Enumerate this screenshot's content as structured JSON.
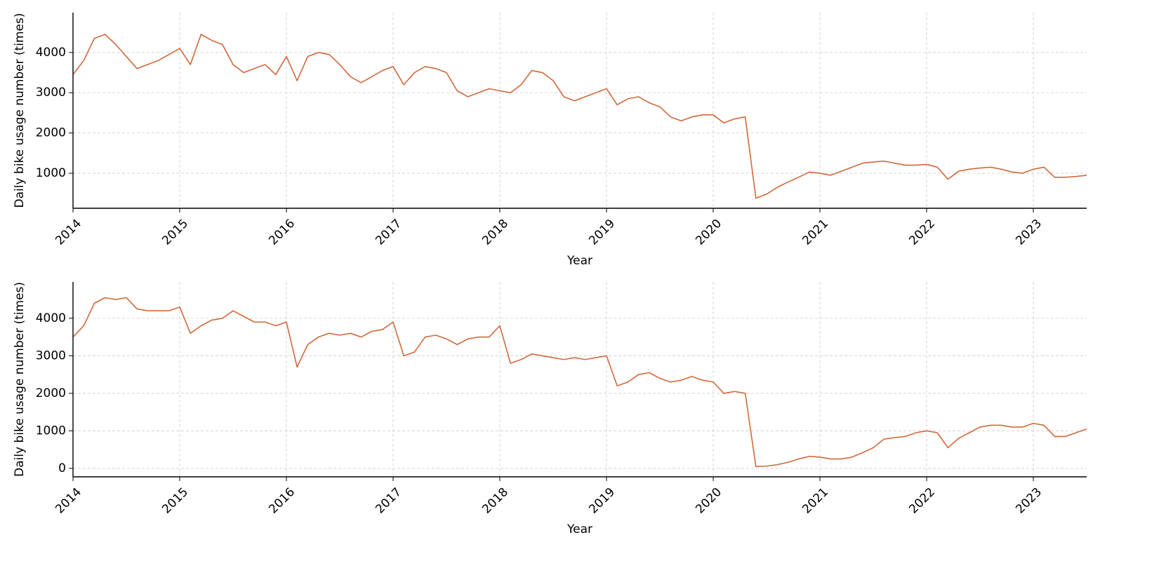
{
  "chart_data": [
    {
      "type": "line",
      "xlabel": "Year",
      "ylabel": "Daily bike usage number (times)",
      "x": [
        2014,
        2014.1,
        2014.2,
        2014.3,
        2014.4,
        2014.5,
        2014.6,
        2014.7,
        2014.8,
        2014.9,
        2015,
        2015.1,
        2015.2,
        2015.3,
        2015.4,
        2015.5,
        2015.6,
        2015.7,
        2015.8,
        2015.9,
        2016,
        2016.1,
        2016.2,
        2016.3,
        2016.4,
        2016.5,
        2016.6,
        2016.7,
        2016.8,
        2016.9,
        2017,
        2017.1,
        2017.2,
        2017.3,
        2017.4,
        2017.5,
        2017.6,
        2017.7,
        2017.8,
        2017.9,
        2018,
        2018.1,
        2018.2,
        2018.3,
        2018.4,
        2018.5,
        2018.6,
        2018.7,
        2018.8,
        2018.9,
        2019,
        2019.1,
        2019.2,
        2019.3,
        2019.4,
        2019.5,
        2019.6,
        2019.7,
        2019.8,
        2019.9,
        2020,
        2020.1,
        2020.2,
        2020.3,
        2020.4,
        2020.5,
        2020.6,
        2020.7,
        2020.8,
        2020.9,
        2021,
        2021.1,
        2021.2,
        2021.3,
        2021.4,
        2021.5,
        2021.6,
        2021.7,
        2021.8,
        2021.9,
        2022,
        2022.1,
        2022.2,
        2022.3,
        2022.4,
        2022.5,
        2022.6,
        2022.7,
        2022.8,
        2022.9,
        2023,
        2023.1,
        2023.2,
        2023.3,
        2023.4,
        2023.5
      ],
      "series": [
        {
          "color": "#d0693b",
          "values": [
            3450,
            3800,
            4350,
            4450,
            4200,
            3900,
            3600,
            3700,
            3800,
            3950,
            4100,
            3700,
            4450,
            4300,
            4200,
            3700,
            3500,
            3600,
            3700,
            3450,
            3900,
            3300,
            3900,
            4000,
            3950,
            3700,
            3400,
            3250,
            3400,
            3550,
            3650,
            3200,
            3500,
            3650,
            3600,
            3500,
            3050,
            2900,
            3000,
            3100,
            3050,
            3000,
            3200,
            3550,
            3500,
            3300,
            2900,
            2800,
            2900,
            3000,
            3100,
            2700,
            2850,
            2900,
            2750,
            2650,
            2400,
            2300,
            2400,
            2450,
            2450,
            2250,
            2350,
            2400,
            380,
            480,
            650,
            780,
            900,
            1030,
            1000,
            950,
            1050,
            1150,
            1250,
            1280,
            1300,
            1250,
            1200,
            1200,
            1220,
            1150,
            850,
            1050,
            1100,
            1130,
            1150,
            1100,
            1030,
            1000,
            1100,
            1150,
            900,
            900,
            920,
            950
          ]
        }
      ],
      "xlim": [
        2014,
        2023.5
      ],
      "xticks": [
        2014,
        2015,
        2016,
        2017,
        2018,
        2019,
        2020,
        2021,
        2022,
        2023
      ],
      "ylim": [
        130,
        4990
      ],
      "yticks": [
        1000,
        2000,
        3000,
        4000
      ],
      "grid": true
    },
    {
      "type": "line",
      "xlabel": "Year",
      "ylabel": "Daily bike usage number (times)",
      "x": [
        2014,
        2014.1,
        2014.2,
        2014.3,
        2014.4,
        2014.5,
        2014.6,
        2014.7,
        2014.8,
        2014.9,
        2015,
        2015.1,
        2015.2,
        2015.3,
        2015.4,
        2015.5,
        2015.6,
        2015.7,
        2015.8,
        2015.9,
        2016,
        2016.1,
        2016.2,
        2016.3,
        2016.4,
        2016.5,
        2016.6,
        2016.7,
        2016.8,
        2016.9,
        2017,
        2017.1,
        2017.2,
        2017.3,
        2017.4,
        2017.5,
        2017.6,
        2017.7,
        2017.8,
        2017.9,
        2018,
        2018.1,
        2018.2,
        2018.3,
        2018.4,
        2018.5,
        2018.6,
        2018.7,
        2018.8,
        2018.9,
        2019,
        2019.1,
        2019.2,
        2019.3,
        2019.4,
        2019.5,
        2019.6,
        2019.7,
        2019.8,
        2019.9,
        2020,
        2020.1,
        2020.2,
        2020.3,
        2020.4,
        2020.5,
        2020.6,
        2020.7,
        2020.8,
        2020.9,
        2021,
        2021.1,
        2021.2,
        2021.3,
        2021.4,
        2021.5,
        2021.6,
        2021.7,
        2021.8,
        2021.9,
        2022,
        2022.1,
        2022.2,
        2022.3,
        2022.4,
        2022.5,
        2022.6,
        2022.7,
        2022.8,
        2022.9,
        2023,
        2023.1,
        2023.2,
        2023.3,
        2023.4,
        2023.5
      ],
      "series": [
        {
          "color": "#d0693b",
          "values": [
            3500,
            3800,
            4400,
            4550,
            4500,
            4550,
            4250,
            4200,
            4200,
            4200,
            4300,
            3600,
            3800,
            3950,
            4000,
            4200,
            4050,
            3900,
            3900,
            3800,
            3900,
            2700,
            3300,
            3500,
            3600,
            3550,
            3600,
            3500,
            3650,
            3700,
            3900,
            3000,
            3100,
            3500,
            3550,
            3450,
            3300,
            3450,
            3500,
            3500,
            3800,
            2800,
            2900,
            3050,
            3000,
            2950,
            2900,
            2950,
            2900,
            2950,
            3000,
            2200,
            2300,
            2500,
            2550,
            2400,
            2300,
            2350,
            2450,
            2350,
            2300,
            2000,
            2050,
            2000,
            50,
            60,
            100,
            160,
            250,
            320,
            300,
            250,
            250,
            300,
            420,
            550,
            780,
            820,
            850,
            950,
            1000,
            950,
            550,
            800,
            950,
            1100,
            1150,
            1150,
            1100,
            1100,
            1200,
            1150,
            850,
            850,
            950,
            1050
          ]
        }
      ],
      "xlim": [
        2014,
        2023.5
      ],
      "xticks": [
        2014,
        2015,
        2016,
        2017,
        2018,
        2019,
        2020,
        2021,
        2022,
        2023
      ],
      "ylim": [
        -225,
        4970
      ],
      "yticks": [
        0,
        1000,
        2000,
        3000,
        4000
      ],
      "grid": true
    }
  ]
}
